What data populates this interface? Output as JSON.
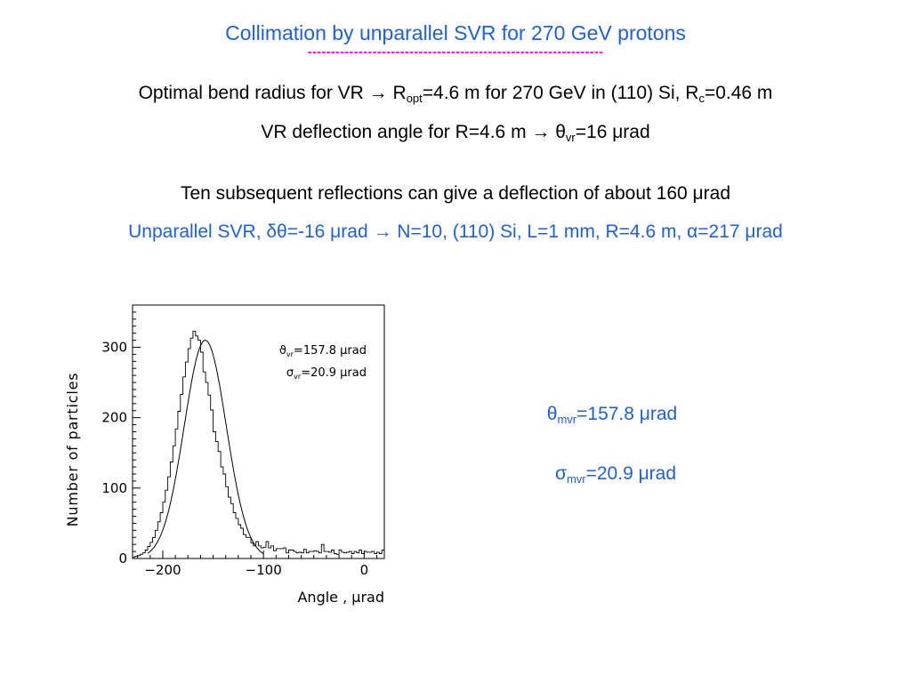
{
  "slide": {
    "title": "Collimation by unparallel SVR for 270 GeV protons",
    "dash_rule": "----------------------------------------------------------------",
    "line1": {
      "a": "Optimal bend radius for VR → R",
      "b": "opt",
      "c": "=4.6 m for 270 GeV in (110) Si, R",
      "d": "c",
      "e": "=0.46 m"
    },
    "line2": {
      "a": "VR deflection  angle for R=4.6 m → θ",
      "b": "vr",
      "c": "=16 μrad"
    },
    "line3": "Ten subsequent reflections can give a deflection of about 160 μrad",
    "line4": "Unparallel SVR, δθ=-16 μrad → N=10, (110) Si, L=1 mm, R=4.6 m, α=217 μrad",
    "result_theta": {
      "a": "θ",
      "b": "mvr",
      "c": "=157.8 μrad"
    },
    "result_sigma": {
      "a": "σ",
      "b": "mvr",
      "c": "=20.9 μrad"
    },
    "colors": {
      "accent": "#1f5fe0",
      "rule": "#ff00ff"
    }
  },
  "chart_data": {
    "type": "line",
    "xlabel": "Angle , μrad",
    "ylabel": "Number of particles",
    "xlim": [
      -230,
      20
    ],
    "ylim": [
      0,
      360
    ],
    "xticks": [
      -200,
      -100,
      0
    ],
    "xtick_labels": [
      "−200",
      "−100",
      "0"
    ],
    "yticks": [
      0,
      100,
      200,
      300
    ],
    "yticks_minor": 10,
    "annotations": {
      "theta": {
        "sym": "ϑ",
        "sub": "vr",
        "val": "=157.8 μrad"
      },
      "sigma": {
        "sym": "σ",
        "sub": "vr",
        "val": "=20.9 μrad"
      }
    },
    "histogram": {
      "bin_start": -230,
      "bin_width": 2.5,
      "counts": [
        2,
        3,
        4,
        6,
        8,
        12,
        17,
        23,
        30,
        40,
        52,
        65,
        80,
        97,
        116,
        137,
        160,
        184,
        209,
        233,
        258,
        279,
        298,
        313,
        323,
        316,
        310,
        293,
        265,
        250,
        232,
        211,
        180,
        166,
        152,
        130,
        120,
        102,
        87,
        78,
        65,
        57,
        48,
        43,
        34,
        30,
        30,
        22,
        18,
        24,
        18,
        15,
        16,
        24,
        15,
        18,
        11,
        14,
        14,
        14,
        15,
        8,
        12,
        12,
        10,
        8,
        9,
        8,
        13,
        8,
        10,
        10,
        11,
        10,
        8,
        20,
        10,
        10,
        9,
        12,
        7,
        6,
        12,
        9,
        8,
        9,
        10,
        7,
        10,
        8,
        12,
        7,
        10,
        9,
        9,
        10,
        7,
        9,
        7,
        12
      ]
    },
    "fit": {
      "series_name": "",
      "type": "gaussian",
      "mean": -157.8,
      "sigma": 20.9,
      "amplitude": 310
    }
  }
}
